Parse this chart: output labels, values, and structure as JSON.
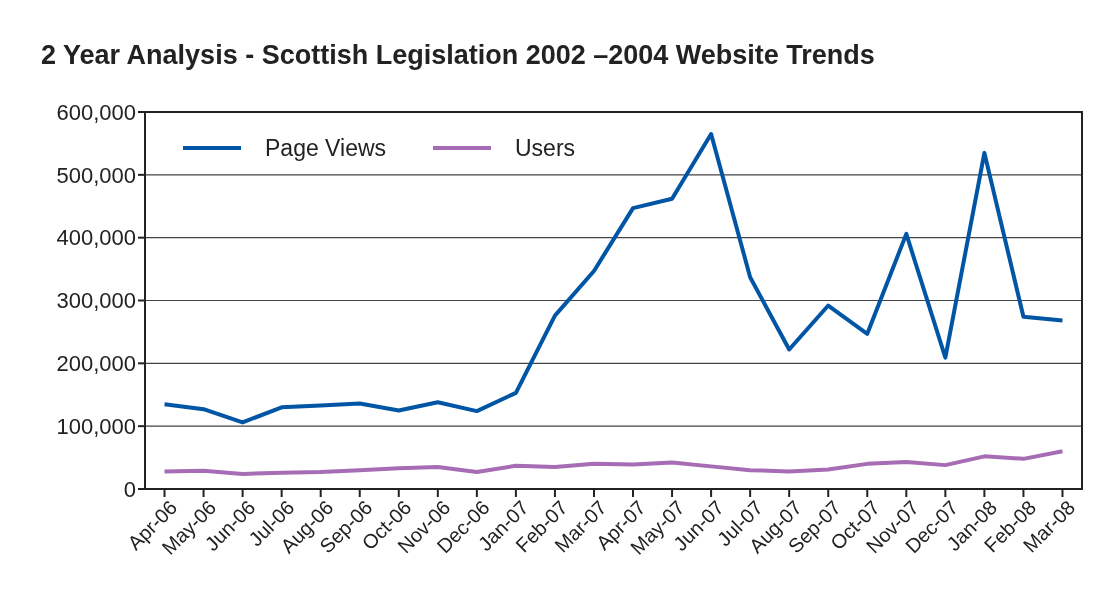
{
  "chart_data": {
    "type": "line",
    "title": "2 Year Analysis - Scottish Legislation 2002 –2004 Website Trends",
    "categories": [
      "Apr-06",
      "May-06",
      "Jun-06",
      "Jul-06",
      "Aug-06",
      "Sep-06",
      "Oct-06",
      "Nov-06",
      "Dec-06",
      "Jan-07",
      "Feb-07",
      "Mar-07",
      "Apr-07",
      "May-07",
      "Jun-07",
      "Jul-07",
      "Aug-07",
      "Sep-07",
      "Oct-07",
      "Nov-07",
      "Dec-07",
      "Jan-08",
      "Feb-08",
      "Mar-08"
    ],
    "series": [
      {
        "name": "Page Views",
        "color": "#0055a5",
        "values": [
          135000,
          127000,
          106000,
          130000,
          133000,
          136000,
          125000,
          138000,
          124000,
          153000,
          276000,
          347000,
          447000,
          462000,
          565000,
          337000,
          222000,
          292000,
          247000,
          406000,
          209000,
          535000,
          274000,
          268000
        ]
      },
      {
        "name": "Users",
        "color": "#a66cb4",
        "values": [
          28000,
          29000,
          24000,
          26000,
          27000,
          30000,
          33000,
          35000,
          27000,
          37000,
          35000,
          40000,
          39000,
          42000,
          36000,
          30000,
          28000,
          31000,
          40000,
          43000,
          38000,
          52000,
          48000,
          60000
        ]
      }
    ],
    "ylim": [
      0,
      600000
    ],
    "yticks": [
      {
        "value": 0,
        "label": "0"
      },
      {
        "value": 100000,
        "label": "100,000"
      },
      {
        "value": 200000,
        "label": "200,000"
      },
      {
        "value": 300000,
        "label": "300,000"
      },
      {
        "value": 400000,
        "label": "400,000"
      },
      {
        "value": 500000,
        "label": "500,000"
      },
      {
        "value": 600000,
        "label": "600,000"
      }
    ],
    "grid": "y",
    "legend": "top left",
    "marker": "none",
    "line_style": "solid"
  }
}
